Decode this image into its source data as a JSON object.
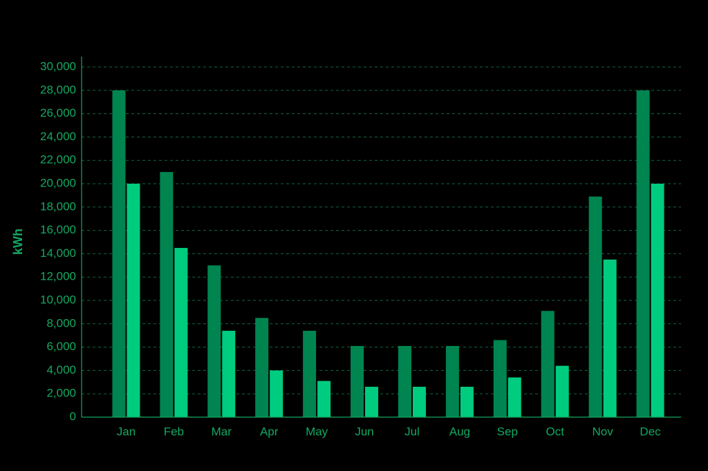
{
  "chart_data": {
    "type": "bar",
    "ylabel": "kWh",
    "categories": [
      "Jan",
      "Feb",
      "Mar",
      "Apr",
      "May",
      "Jun",
      "Jul",
      "Aug",
      "Sep",
      "Oct",
      "Nov",
      "Dec"
    ],
    "series": [
      {
        "color": "#008550",
        "values": [
          28000,
          21000,
          13000,
          8500,
          7400,
          6100,
          6100,
          6100,
          6600,
          9100,
          18900,
          28000
        ]
      },
      {
        "color": "#00cc7f",
        "values": [
          20000,
          14500,
          7400,
          4000,
          3100,
          2600,
          2600,
          2600,
          3400,
          4400,
          13500,
          20000
        ]
      }
    ],
    "ylim": [
      0,
      30000
    ],
    "yticks": [
      0,
      {
        "value": 2000,
        "label": "2,000"
      },
      {
        "value": 4000,
        "label": "4,000"
      },
      {
        "value": 6000,
        "label": "6,000"
      },
      {
        "value": 8000,
        "label": "8,000"
      },
      {
        "value": 10000,
        "label": "10,000"
      },
      {
        "value": 12000,
        "label": "12,000"
      },
      {
        "value": 14000,
        "label": "14,000"
      },
      {
        "value": 16000,
        "label": "16,000"
      },
      {
        "value": 18000,
        "label": "18,000"
      },
      {
        "value": 20000,
        "label": "20,000"
      },
      {
        "value": 22000,
        "label": "22,000"
      },
      {
        "value": 24000,
        "label": "24,000"
      },
      {
        "value": 26000,
        "label": "26,000"
      },
      {
        "value": 28000,
        "label": "28,000"
      },
      {
        "value": 30000,
        "label": "30,000"
      }
    ],
    "grid": true
  }
}
